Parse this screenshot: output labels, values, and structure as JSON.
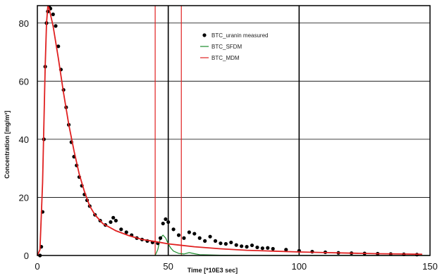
{
  "chart_data": {
    "type": "line",
    "title": "",
    "xlabel": "Time [*10E3 sec]",
    "ylabel": "Concentration [mg/m³]",
    "xlim": [
      0,
      150
    ],
    "ylim": [
      0,
      86
    ],
    "x_ticks": [
      0,
      50,
      100,
      150
    ],
    "x_tick_labels": [
      "0",
      "50",
      "100",
      "150"
    ],
    "y_ticks": [
      0,
      20,
      40,
      60,
      80
    ],
    "y_tick_labels": [
      "0",
      "20",
      "40",
      "60",
      "80"
    ],
    "grid": true,
    "legend_position": "top-right",
    "vertical_markers": [
      {
        "x": 45,
        "color": "#e02020"
      },
      {
        "x": 50,
        "color": "#000000"
      },
      {
        "x": 55,
        "color": "#e02020"
      },
      {
        "x": 100,
        "color": "#000000"
      }
    ],
    "series": [
      {
        "name": "BTC_uranin measured",
        "style": "markers",
        "color": "#000000",
        "points": [
          [
            1.0,
            0.0
          ],
          [
            1.5,
            3.0
          ],
          [
            2.0,
            15.0
          ],
          [
            2.5,
            40.0
          ],
          [
            3.0,
            65.0
          ],
          [
            3.5,
            80.0
          ],
          [
            4.0,
            84.0
          ],
          [
            4.5,
            85.5
          ],
          [
            5.0,
            85.0
          ],
          [
            6.0,
            83.0
          ],
          [
            7.0,
            79.0
          ],
          [
            8.0,
            72.0
          ],
          [
            9.0,
            64.0
          ],
          [
            10.0,
            57.0
          ],
          [
            11.0,
            51.0
          ],
          [
            12.0,
            45.0
          ],
          [
            13.0,
            39.0
          ],
          [
            14.0,
            34.0
          ],
          [
            15.0,
            31.0
          ],
          [
            16.0,
            27.0
          ],
          [
            17.0,
            24.0
          ],
          [
            18.0,
            21.0
          ],
          [
            19.0,
            19.0
          ],
          [
            20.0,
            17.0
          ],
          [
            22.0,
            14.0
          ],
          [
            24.0,
            12.0
          ],
          [
            26.0,
            10.5
          ],
          [
            28.0,
            11.5
          ],
          [
            29.0,
            13.0
          ],
          [
            30.0,
            12.0
          ],
          [
            32.0,
            9.0
          ],
          [
            34.0,
            8.0
          ],
          [
            36.0,
            7.0
          ],
          [
            38.0,
            6.0
          ],
          [
            40.0,
            5.5
          ],
          [
            42.0,
            5.0
          ],
          [
            44.0,
            4.5
          ],
          [
            46.0,
            4.2
          ],
          [
            47.0,
            6.0
          ],
          [
            48.0,
            11.0
          ],
          [
            49.0,
            12.5
          ],
          [
            50.0,
            11.5
          ],
          [
            52.0,
            9.0
          ],
          [
            54.0,
            7.0
          ],
          [
            56.0,
            6.0
          ],
          [
            58.0,
            8.0
          ],
          [
            60.0,
            7.5
          ],
          [
            62.0,
            6.0
          ],
          [
            64.0,
            5.0
          ],
          [
            66.0,
            6.5
          ],
          [
            68.0,
            5.0
          ],
          [
            70.0,
            4.2
          ],
          [
            72.0,
            4.0
          ],
          [
            74.0,
            4.5
          ],
          [
            76.0,
            3.6
          ],
          [
            78.0,
            3.2
          ],
          [
            80.0,
            3.0
          ],
          [
            82.0,
            3.5
          ],
          [
            84.0,
            2.8
          ],
          [
            86.0,
            2.5
          ],
          [
            88.0,
            2.6
          ],
          [
            90.0,
            2.3
          ],
          [
            95.0,
            2.0
          ],
          [
            100.0,
            1.6
          ],
          [
            105.0,
            1.3
          ],
          [
            110.0,
            1.1
          ],
          [
            115.0,
            0.9
          ],
          [
            120.0,
            0.8
          ],
          [
            125.0,
            0.7
          ],
          [
            130.0,
            0.6
          ],
          [
            135.0,
            0.5
          ],
          [
            140.0,
            0.4
          ],
          [
            145.0,
            0.3
          ]
        ]
      },
      {
        "name": "BTC_SFDM",
        "style": "line",
        "color": "#1a8a2a",
        "points": [
          [
            45.0,
            0.0
          ],
          [
            46.0,
            2.0
          ],
          [
            47.0,
            6.0
          ],
          [
            48.0,
            7.0
          ],
          [
            49.0,
            6.0
          ],
          [
            50.0,
            4.0
          ],
          [
            51.0,
            2.5
          ],
          [
            52.0,
            1.5
          ],
          [
            54.0,
            0.7
          ],
          [
            56.0,
            0.5
          ],
          [
            58.0,
            1.0
          ],
          [
            60.0,
            0.6
          ],
          [
            62.0,
            0.3
          ],
          [
            66.0,
            0.2
          ],
          [
            70.0,
            0.1
          ],
          [
            80.0,
            0.05
          ],
          [
            90.0,
            0.0
          ],
          [
            150.0,
            0.0
          ]
        ]
      },
      {
        "name": "BTC_MDM",
        "style": "line",
        "color": "#e02020",
        "points": [
          [
            0.0,
            0.0
          ],
          [
            1.0,
            2.0
          ],
          [
            2.0,
            25.0
          ],
          [
            3.0,
            65.0
          ],
          [
            3.5,
            80.0
          ],
          [
            4.0,
            86.0
          ],
          [
            4.5,
            85.0
          ],
          [
            5.0,
            83.0
          ],
          [
            6.0,
            79.0
          ],
          [
            8.0,
            68.0
          ],
          [
            10.0,
            56.0
          ],
          [
            12.0,
            45.0
          ],
          [
            14.0,
            36.0
          ],
          [
            16.0,
            28.0
          ],
          [
            18.0,
            22.0
          ],
          [
            20.0,
            17.0
          ],
          [
            22.0,
            14.0
          ],
          [
            25.0,
            11.0
          ],
          [
            30.0,
            8.5
          ],
          [
            35.0,
            6.8
          ],
          [
            40.0,
            5.5
          ],
          [
            45.0,
            4.8
          ],
          [
            50.0,
            4.0
          ],
          [
            60.0,
            3.0
          ],
          [
            70.0,
            2.3
          ],
          [
            80.0,
            1.8
          ],
          [
            90.0,
            1.5
          ],
          [
            100.0,
            1.2
          ],
          [
            110.0,
            1.0
          ],
          [
            120.0,
            0.8
          ],
          [
            130.0,
            0.6
          ],
          [
            140.0,
            0.5
          ],
          [
            147.0,
            0.4
          ]
        ]
      }
    ]
  }
}
